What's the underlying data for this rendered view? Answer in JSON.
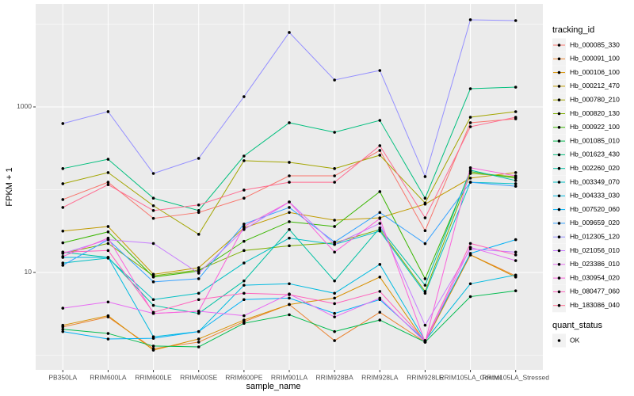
{
  "chart_data": {
    "type": "line",
    "x_label": "sample_name",
    "y_label": "FPKM + 1",
    "log_y": true,
    "ylim": [
      0.665,
      17540
    ],
    "yticks": [
      10,
      1000
    ],
    "y_minor_grid": [
      1,
      100,
      10000
    ],
    "grid": true,
    "legend_position": "right",
    "legend_title": "tracking_id",
    "point_color": "#000000",
    "point_legend": {
      "title": "quant_status",
      "entries": [
        "OK"
      ]
    },
    "categories": [
      "PB350LA",
      "RRIM600LA",
      "RRIM600LE",
      "RRIM600SE",
      "RRIM600PE",
      "RRIM901LA",
      "RRIM928BA",
      "RRIM928LA",
      "RRIM928LE",
      "RRIM105LA_Control",
      "RRIM105LA_Stressed"
    ],
    "series": [
      {
        "name": "Hb_000085_330",
        "color": "#F8766D",
        "values": [
          76,
          123,
          45,
          53,
          79,
          147,
          147,
          298,
          32,
          644,
          719
        ]
      },
      {
        "name": "Hb_000091_100",
        "color": "#EA8331",
        "values": [
          2.2,
          2.9,
          1.2,
          1.44,
          2.54,
          4.1,
          1.5,
          3.3,
          1.44,
          16.3,
          9.1
        ]
      },
      {
        "name": "Hb_000106_100",
        "color": "#D89000",
        "values": [
          2.3,
          3.0,
          1.15,
          1.57,
          2.66,
          4.1,
          4.9,
          8.8,
          1.44,
          16.3,
          8.8
        ]
      },
      {
        "name": "Hb_000212_470",
        "color": "#C09B00",
        "values": [
          31.6,
          35.9,
          9.5,
          11.4,
          34.5,
          53,
          42.8,
          45.7,
          66.9,
          138,
          161
        ]
      },
      {
        "name": "Hb_000780_210",
        "color": "#A3A500",
        "values": [
          118,
          161,
          64,
          28.9,
          224,
          214,
          180,
          261,
          69,
          751,
          876
        ]
      },
      {
        "name": "Hb_000820_130",
        "color": "#7CAE00",
        "values": [
          17,
          22.4,
          9.1,
          10.7,
          18.4,
          21,
          22.8,
          33,
          5.9,
          157,
          144
        ]
      },
      {
        "name": "Hb_000922_100",
        "color": "#39B600",
        "values": [
          22.8,
          30.9,
          8.8,
          10.4,
          23.8,
          41,
          35.9,
          94.7,
          8.4,
          165,
          138
        ]
      },
      {
        "name": "Hb_001085_010",
        "color": "#00BB4E",
        "values": [
          2.06,
          1.83,
          1.29,
          1.26,
          2.43,
          3.08,
          1.93,
          2.66,
          1.44,
          5.1,
          6.0
        ]
      },
      {
        "name": "Hb_001623_430",
        "color": "#00BF7D",
        "values": [
          180,
          233,
          79,
          56,
          255,
          644,
          494,
          687,
          79,
          1660,
          1734
        ]
      },
      {
        "name": "Hb_002260_020",
        "color": "#00C1A3",
        "values": [
          17.6,
          15.2,
          4.0,
          3.2,
          7.9,
          33,
          7.9,
          34.5,
          7.0,
          172,
          129
        ]
      },
      {
        "name": "Hb_003349_070",
        "color": "#00BFC4",
        "values": [
          13,
          14.9,
          4.7,
          5.6,
          13,
          26,
          21.8,
          31.6,
          5.6,
          123,
          118
        ]
      },
      {
        "name": "Hb_004333_030",
        "color": "#00BAE0",
        "values": [
          15.2,
          15.2,
          1.67,
          1.93,
          7.0,
          7.3,
          5.6,
          12.5,
          1.5,
          7.3,
          9.3
        ]
      },
      {
        "name": "Hb_007520_060",
        "color": "#00B0F6",
        "values": [
          1.93,
          1.57,
          1.6,
          1.93,
          4.7,
          4.9,
          3.2,
          4.7,
          1.5,
          17,
          24.9
        ]
      },
      {
        "name": "Hb_009659_020",
        "color": "#35A2FF",
        "values": [
          12.2,
          24.9,
          7.7,
          8.4,
          38.4,
          61,
          23.3,
          53,
          22.3,
          123,
          110
        ]
      },
      {
        "name": "Hb_012305_120",
        "color": "#9590FF",
        "values": [
          630,
          877,
          157,
          239,
          1330,
          7940,
          2115,
          2755,
          144,
          11300,
          11040
        ]
      },
      {
        "name": "Hb_021056_010",
        "color": "#C77CFF",
        "values": [
          17,
          24.9,
          22.4,
          9.8,
          33,
          71,
          21.8,
          39.2,
          2.3,
          19.2,
          17.6
        ]
      },
      {
        "name": "Hb_023386_010",
        "color": "#E76BF3",
        "values": [
          3.7,
          4.4,
          3.2,
          3.4,
          3.0,
          5.5,
          2.9,
          4.9,
          1.44,
          20.1,
          13.9
        ]
      },
      {
        "name": "Hb_030954_020",
        "color": "#FA62DB",
        "values": [
          15.6,
          26,
          3.2,
          3.4,
          35.9,
          71,
          17.6,
          44.8,
          1.44,
          184,
          147
        ]
      },
      {
        "name": "Hb_080477_060",
        "color": "#FF62BC",
        "values": [
          17.6,
          18.4,
          3.3,
          4.7,
          5.6,
          5.4,
          4.2,
          5.9,
          1.5,
          22.4,
          16.3
        ]
      },
      {
        "name": "Hb_183086_040",
        "color": "#FF6C91",
        "values": [
          61,
          115,
          56,
          65.4,
          99,
          123,
          123,
          340,
          45.7,
          576,
          751
        ]
      }
    ]
  }
}
